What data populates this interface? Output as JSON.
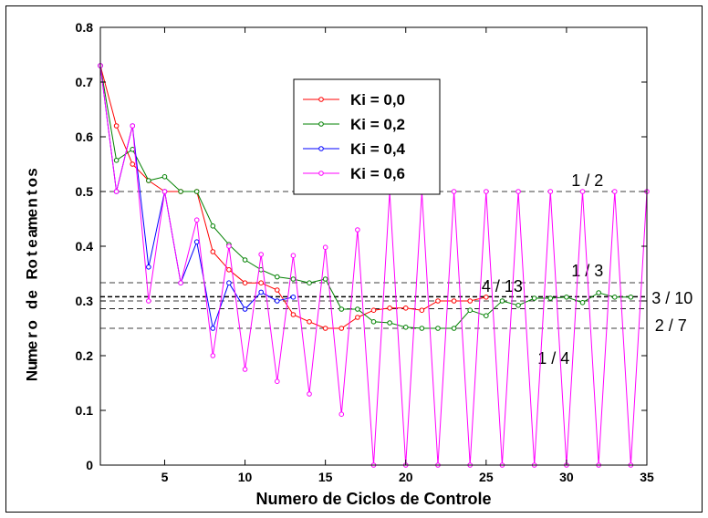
{
  "chart_data": {
    "type": "line",
    "xlabel": "Numero de Ciclos de Controle",
    "ylabel": "Numero de Roteamentos",
    "xlim": [
      1,
      35
    ],
    "ylim": [
      0,
      0.8
    ],
    "xticks": [
      5,
      10,
      15,
      20,
      25,
      30,
      35
    ],
    "yticks": [
      0,
      0.1,
      0.2,
      0.3,
      0.4,
      0.5,
      0.6,
      0.7,
      0.8
    ],
    "ytick_labels": [
      "0",
      "0.1",
      "0.2",
      "0.3",
      "0.4",
      "0.5",
      "0.6",
      "0.7",
      "0.8"
    ],
    "grid": false,
    "legend_position": "upper-center",
    "reference_lines": [
      {
        "label": "1 / 2",
        "value": 0.5,
        "style": "dashed",
        "label_x": 31.3,
        "label_y": 0.51,
        "anchor": "middle"
      },
      {
        "label": "1 / 3",
        "value": 0.3333,
        "style": "dashed",
        "label_x": 31.3,
        "label_y": 0.345,
        "anchor": "middle"
      },
      {
        "label": "4 / 13",
        "value": 0.3077,
        "style": "dashed-bold",
        "label_x": 26.0,
        "label_y": 0.317,
        "anchor": "middle"
      },
      {
        "label": "3 / 10",
        "value": 0.3,
        "style": "dashed",
        "label_x": 35.3,
        "label_y": 0.295,
        "anchor": "start"
      },
      {
        "label": "2 / 7",
        "value": 0.2857,
        "style": "dashed",
        "label_x": 35.5,
        "label_y": 0.245,
        "anchor": "start"
      },
      {
        "label": "1 / 4",
        "value": 0.25,
        "style": "dashed",
        "label_x": 29.2,
        "label_y": 0.185,
        "anchor": "middle"
      }
    ],
    "series": [
      {
        "name": "Ki = 0,0",
        "color": "#ff0000",
        "x": [
          1,
          2,
          3,
          4,
          5,
          6,
          7,
          8,
          9,
          10,
          11,
          12,
          13,
          14,
          15,
          16,
          17,
          18,
          19,
          20,
          21,
          22,
          23,
          24,
          25
        ],
        "values": [
          0.73,
          0.62,
          0.55,
          0.52,
          0.5,
          0.5,
          0.5,
          0.39,
          0.357,
          0.333,
          0.333,
          0.32,
          0.275,
          0.262,
          0.25,
          0.25,
          0.27,
          0.283,
          0.287,
          0.287,
          0.283,
          0.3,
          0.3,
          0.3,
          0.307
        ]
      },
      {
        "name": "Ki = 0,2",
        "color": "#008000",
        "x": [
          1,
          2,
          3,
          4,
          5,
          6,
          7,
          8,
          9,
          10,
          11,
          12,
          13,
          14,
          15,
          16,
          17,
          18,
          19,
          20,
          21,
          22,
          23,
          24,
          25,
          26,
          27,
          28,
          29,
          30,
          31,
          32,
          33,
          34
        ],
        "values": [
          0.73,
          0.557,
          0.577,
          0.52,
          0.527,
          0.5,
          0.5,
          0.437,
          0.403,
          0.375,
          0.357,
          0.344,
          0.34,
          0.333,
          0.34,
          0.285,
          0.285,
          0.262,
          0.26,
          0.252,
          0.25,
          0.25,
          0.25,
          0.283,
          0.273,
          0.3,
          0.292,
          0.305,
          0.305,
          0.307,
          0.297,
          0.315,
          0.307,
          0.307
        ]
      },
      {
        "name": "Ki = 0,4",
        "color": "#0000ff",
        "x": [
          1,
          2,
          3,
          4,
          5,
          6,
          7,
          8,
          9,
          10,
          11,
          12,
          13
        ],
        "values": [
          0.73,
          0.5,
          0.62,
          0.362,
          0.5,
          0.333,
          0.408,
          0.25,
          0.333,
          0.285,
          0.316,
          0.3,
          0.307
        ]
      },
      {
        "name": "Ki = 0,6",
        "color": "#ff00ff",
        "x": [
          1,
          2,
          3,
          4,
          5,
          6,
          7,
          8,
          9,
          10,
          11,
          12,
          13,
          14,
          15,
          16,
          17,
          18,
          19,
          20,
          21,
          22,
          23,
          24,
          25,
          26,
          27,
          28,
          29,
          30,
          31,
          32,
          33,
          34,
          35
        ],
        "values": [
          0.73,
          0.5,
          0.62,
          0.3,
          0.5,
          0.333,
          0.448,
          0.2,
          0.4,
          0.175,
          0.385,
          0.153,
          0.383,
          0.13,
          0.398,
          0.093,
          0.43,
          0,
          0.5,
          0,
          0.5,
          0,
          0.5,
          0,
          0.5,
          0,
          0.5,
          0,
          0.5,
          0,
          0.5,
          0,
          0.5,
          0,
          0.5
        ]
      }
    ]
  }
}
